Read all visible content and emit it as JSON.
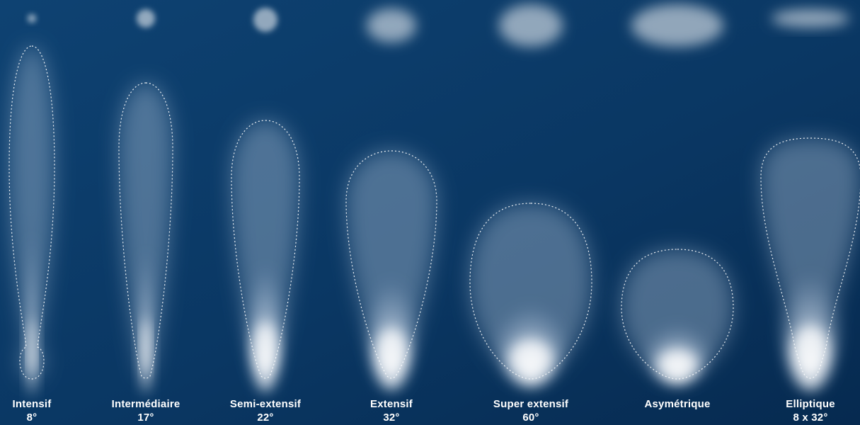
{
  "colors": {
    "background_top": "#0d3f6e",
    "background_bottom": "#072b52",
    "beam": "#ffffff",
    "outline": "#ffffff",
    "label": "#ffffff"
  },
  "beams": [
    {
      "name": "Intensif",
      "angle": "8°"
    },
    {
      "name": "Intermédiaire",
      "angle": "17°"
    },
    {
      "name": "Semi-extensif",
      "angle": "22°"
    },
    {
      "name": "Extensif",
      "angle": "32°"
    },
    {
      "name": "Super extensif",
      "angle": "60°"
    },
    {
      "name": "Asymétrique",
      "angle": ""
    },
    {
      "name": "Elliptique",
      "angle": "8 x 32°"
    }
  ]
}
